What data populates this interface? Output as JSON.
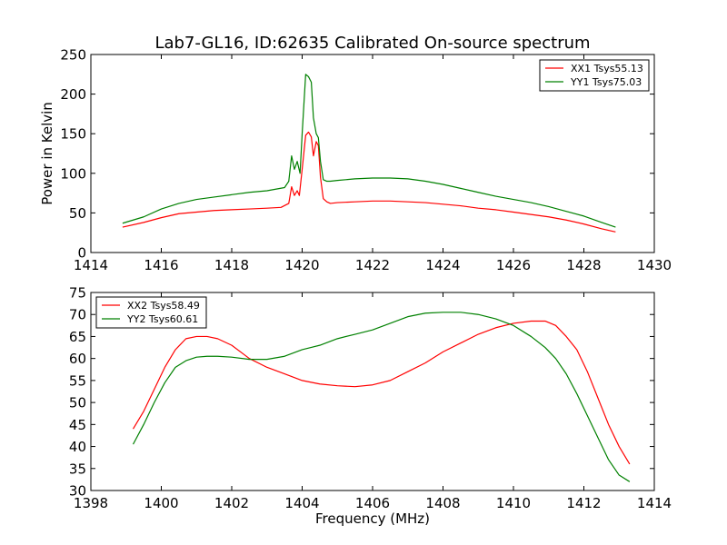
{
  "chart_data": [
    {
      "type": "line",
      "title": "Lab7-GL16, ID:62635 Calibrated On-source spectrum",
      "xlabel": "",
      "ylabel": "Power in Kelvin",
      "xlim": [
        1414,
        1430
      ],
      "ylim": [
        0,
        250
      ],
      "xticks": [
        "1414",
        "1416",
        "1418",
        "1420",
        "1422",
        "1424",
        "1426",
        "1428",
        "1430"
      ],
      "yticks": [
        "0",
        "50",
        "100",
        "150",
        "200",
        "250"
      ],
      "grid": false,
      "legend_position": "top-right",
      "series": [
        {
          "name": "XX1 Tsys55.13",
          "color": "#ff0000",
          "x": [
            1414.9,
            1415.5,
            1416.0,
            1416.5,
            1417.0,
            1417.5,
            1418.0,
            1418.5,
            1419.0,
            1419.4,
            1419.62,
            1419.7,
            1419.78,
            1419.86,
            1419.92,
            1420.0,
            1420.1,
            1420.18,
            1420.26,
            1420.32,
            1420.4,
            1420.46,
            1420.52,
            1420.6,
            1420.7,
            1420.8,
            1421.0,
            1421.5,
            1422.0,
            1422.5,
            1423.0,
            1423.5,
            1424.0,
            1424.5,
            1425.0,
            1425.5,
            1426.0,
            1426.5,
            1427.0,
            1427.5,
            1428.0,
            1428.5,
            1428.9
          ],
          "y": [
            32,
            38,
            44,
            49,
            51,
            53,
            54,
            55,
            56,
            57,
            62,
            83,
            72,
            78,
            72,
            105,
            148,
            152,
            146,
            122,
            140,
            135,
            95,
            68,
            64,
            62,
            63,
            64,
            65,
            65,
            64,
            63,
            61,
            59,
            56,
            54,
            51,
            48,
            45,
            41,
            36,
            30,
            26
          ]
        },
        {
          "name": "YY1 Tsys75.03",
          "color": "#008000",
          "x": [
            1414.9,
            1415.5,
            1416.0,
            1416.5,
            1417.0,
            1417.5,
            1418.0,
            1418.5,
            1419.0,
            1419.5,
            1419.62,
            1419.7,
            1419.78,
            1419.86,
            1419.94,
            1420.0,
            1420.1,
            1420.18,
            1420.26,
            1420.32,
            1420.4,
            1420.46,
            1420.52,
            1420.6,
            1420.7,
            1420.8,
            1421.0,
            1421.5,
            1422.0,
            1422.5,
            1423.0,
            1423.5,
            1424.0,
            1424.5,
            1425.0,
            1425.5,
            1426.0,
            1426.5,
            1427.0,
            1427.5,
            1428.0,
            1428.5,
            1428.9
          ],
          "y": [
            37,
            45,
            55,
            62,
            67,
            70,
            73,
            76,
            78,
            82,
            90,
            122,
            105,
            115,
            100,
            150,
            225,
            222,
            215,
            170,
            150,
            145,
            115,
            92,
            90,
            90,
            91,
            93,
            94,
            94,
            93,
            90,
            86,
            81,
            76,
            71,
            67,
            63,
            58,
            52,
            46,
            38,
            32
          ]
        }
      ]
    },
    {
      "type": "line",
      "title": "",
      "xlabel": "Frequency (MHz)",
      "ylabel": "",
      "xlim": [
        1398,
        1414
      ],
      "ylim": [
        30,
        75
      ],
      "xticks": [
        "1398",
        "1400",
        "1402",
        "1404",
        "1406",
        "1408",
        "1410",
        "1412",
        "1414"
      ],
      "yticks": [
        "30",
        "35",
        "40",
        "45",
        "50",
        "55",
        "60",
        "65",
        "70",
        "75"
      ],
      "grid": false,
      "legend_position": "top-left",
      "series": [
        {
          "name": "XX2 Tsys58.49",
          "color": "#ff0000",
          "x": [
            1399.2,
            1399.5,
            1399.8,
            1400.1,
            1400.4,
            1400.7,
            1401.0,
            1401.3,
            1401.6,
            1402.0,
            1402.5,
            1403.0,
            1403.5,
            1404.0,
            1404.5,
            1405.0,
            1405.5,
            1406.0,
            1406.5,
            1407.0,
            1407.5,
            1408.0,
            1408.5,
            1409.0,
            1409.5,
            1410.0,
            1410.5,
            1410.9,
            1411.2,
            1411.5,
            1411.8,
            1412.1,
            1412.4,
            1412.7,
            1413.0,
            1413.3
          ],
          "y": [
            44,
            48,
            53,
            58,
            62,
            64.5,
            65,
            65,
            64.5,
            63,
            60,
            58,
            56.5,
            55,
            54.2,
            53.8,
            53.6,
            54,
            55,
            57,
            59,
            61.5,
            63.5,
            65.5,
            67,
            68,
            68.5,
            68.5,
            67.5,
            65,
            62,
            57,
            51,
            45,
            40,
            36
          ]
        },
        {
          "name": "YY2 Tsys60.61",
          "color": "#008000",
          "x": [
            1399.2,
            1399.5,
            1399.8,
            1400.1,
            1400.4,
            1400.7,
            1401.0,
            1401.3,
            1401.6,
            1402.0,
            1402.5,
            1403.0,
            1403.5,
            1404.0,
            1404.5,
            1405.0,
            1405.5,
            1406.0,
            1406.5,
            1407.0,
            1407.5,
            1408.0,
            1408.5,
            1409.0,
            1409.5,
            1410.0,
            1410.5,
            1410.9,
            1411.2,
            1411.5,
            1411.8,
            1412.1,
            1412.4,
            1412.7,
            1413.0,
            1413.3
          ],
          "y": [
            40.5,
            45,
            50,
            54.5,
            58,
            59.5,
            60.3,
            60.5,
            60.5,
            60.3,
            59.8,
            59.8,
            60.5,
            62,
            63,
            64.5,
            65.5,
            66.5,
            68,
            69.5,
            70.3,
            70.5,
            70.5,
            70,
            69,
            67.5,
            65,
            62.5,
            60,
            56.5,
            52,
            47,
            42,
            37,
            33.5,
            32
          ]
        }
      ]
    }
  ]
}
